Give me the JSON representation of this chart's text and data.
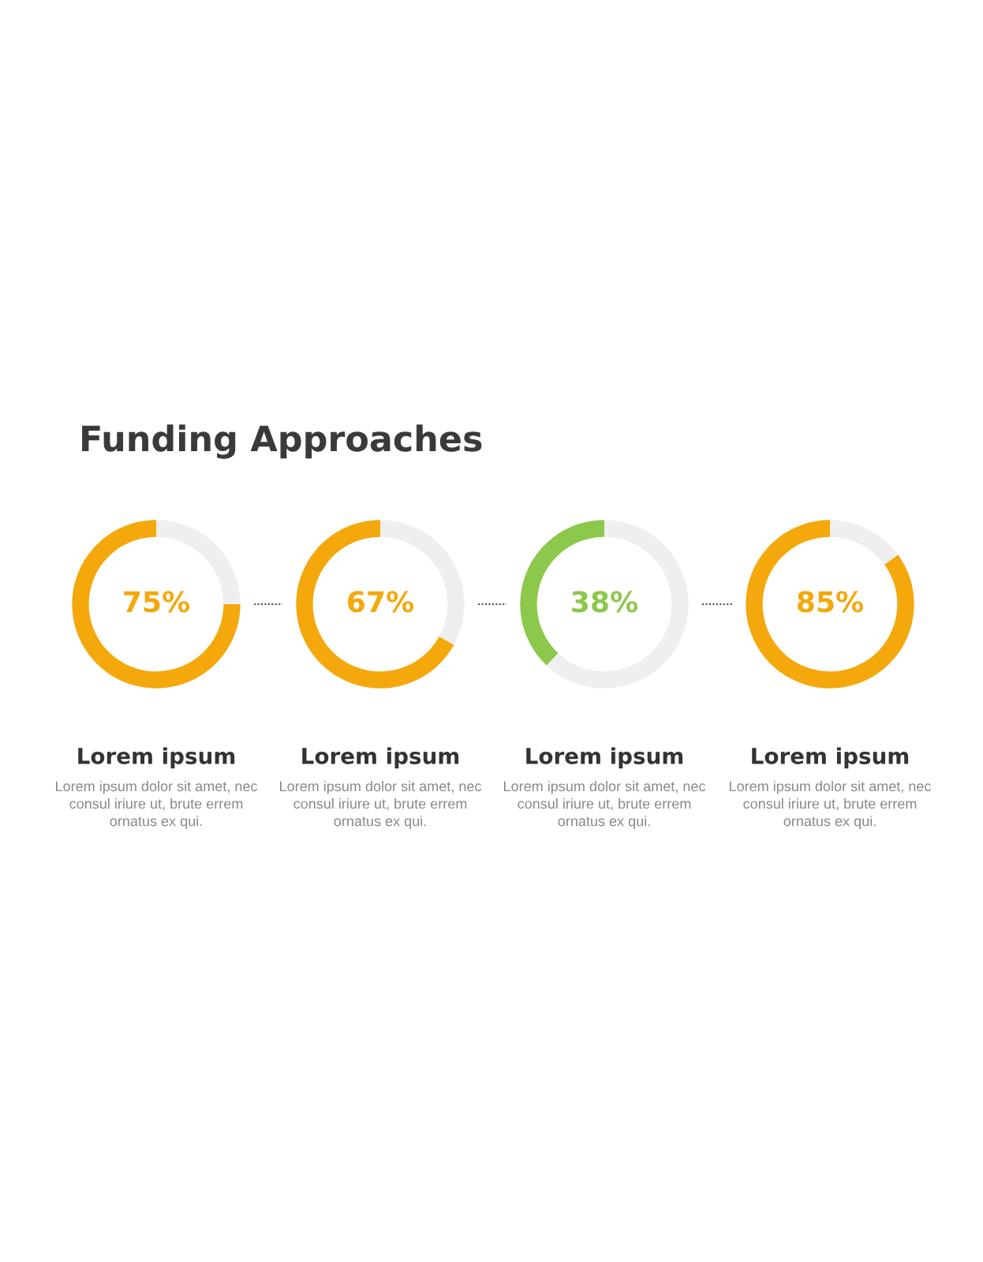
{
  "chart_data": [
    {
      "type": "other",
      "title": "Funding Approaches"
    },
    {
      "type": "donut",
      "categories": [
        null,
        null
      ],
      "values": [
        75,
        25
      ],
      "colors": [
        "#f5a80c",
        "#efefef"
      ],
      "value_labels": [
        "75%",
        null
      ],
      "xlabel": "Lorem ipsum",
      "annotations": [
        "Lorem ipsum dolor sit amet, nec\nconsul iriure ut, brute errem\nornatus ex qui."
      ]
    },
    {
      "type": "donut",
      "categories": [
        null,
        null
      ],
      "values": [
        67,
        33
      ],
      "colors": [
        "#f5a80c",
        "#efefef"
      ],
      "value_labels": [
        "67%",
        null
      ],
      "xlabel": "Lorem ipsum",
      "annotations": [
        "Lorem ipsum dolor sit amet, nec\nconsul iriure ut, brute errem\nornatus ex qui."
      ]
    },
    {
      "type": "donut",
      "categories": [
        null,
        null
      ],
      "values": [
        38,
        62
      ],
      "colors": [
        "#8cc84b",
        "#efefef"
      ],
      "value_labels": [
        "38%",
        null
      ],
      "xlabel": "Lorem ipsum",
      "annotations": [
        "Lorem ipsum dolor sit amet, nec\nconsul iriure ut, brute errem\nornatus ex qui."
      ]
    },
    {
      "type": "donut",
      "categories": [
        null,
        null
      ],
      "values": [
        85,
        15
      ],
      "colors": [
        "#f5a80c",
        "#efefef"
      ],
      "value_labels": [
        "85%",
        null
      ],
      "xlabel": "Lorem ipsum",
      "annotations": [
        "Lorem ipsum dolor sit amet, nec\nconsul iriure ut, brute errem\nornatus ex qui."
      ]
    }
  ]
}
